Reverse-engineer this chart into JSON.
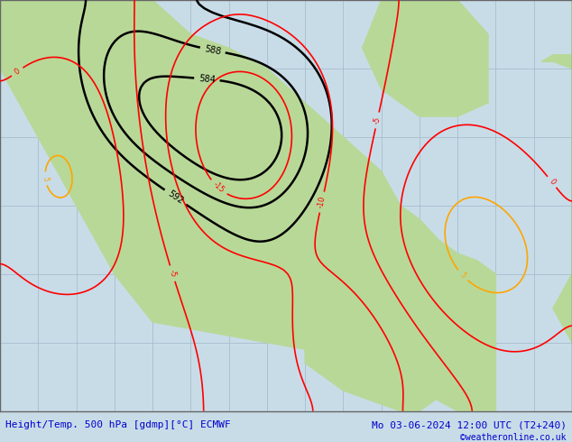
{
  "title_left": "Height/Temp. 500 hPa [gdmp][°C] ECMWF",
  "title_right": "Mo 03-06-2024 12:00 UTC (T2+240)",
  "copyright": "©weatheronline.co.uk",
  "background_color": "#d0e8f0",
  "land_color": "#c8e6a0",
  "grid_color": "#b0c8d0",
  "border_color": "#888888",
  "title_color": "#0000cc",
  "title_fontsize": 8,
  "copyright_color": "#0000cc",
  "copyright_fontsize": 7,
  "fig_width": 6.34,
  "fig_height": 4.9,
  "dpi": 100
}
